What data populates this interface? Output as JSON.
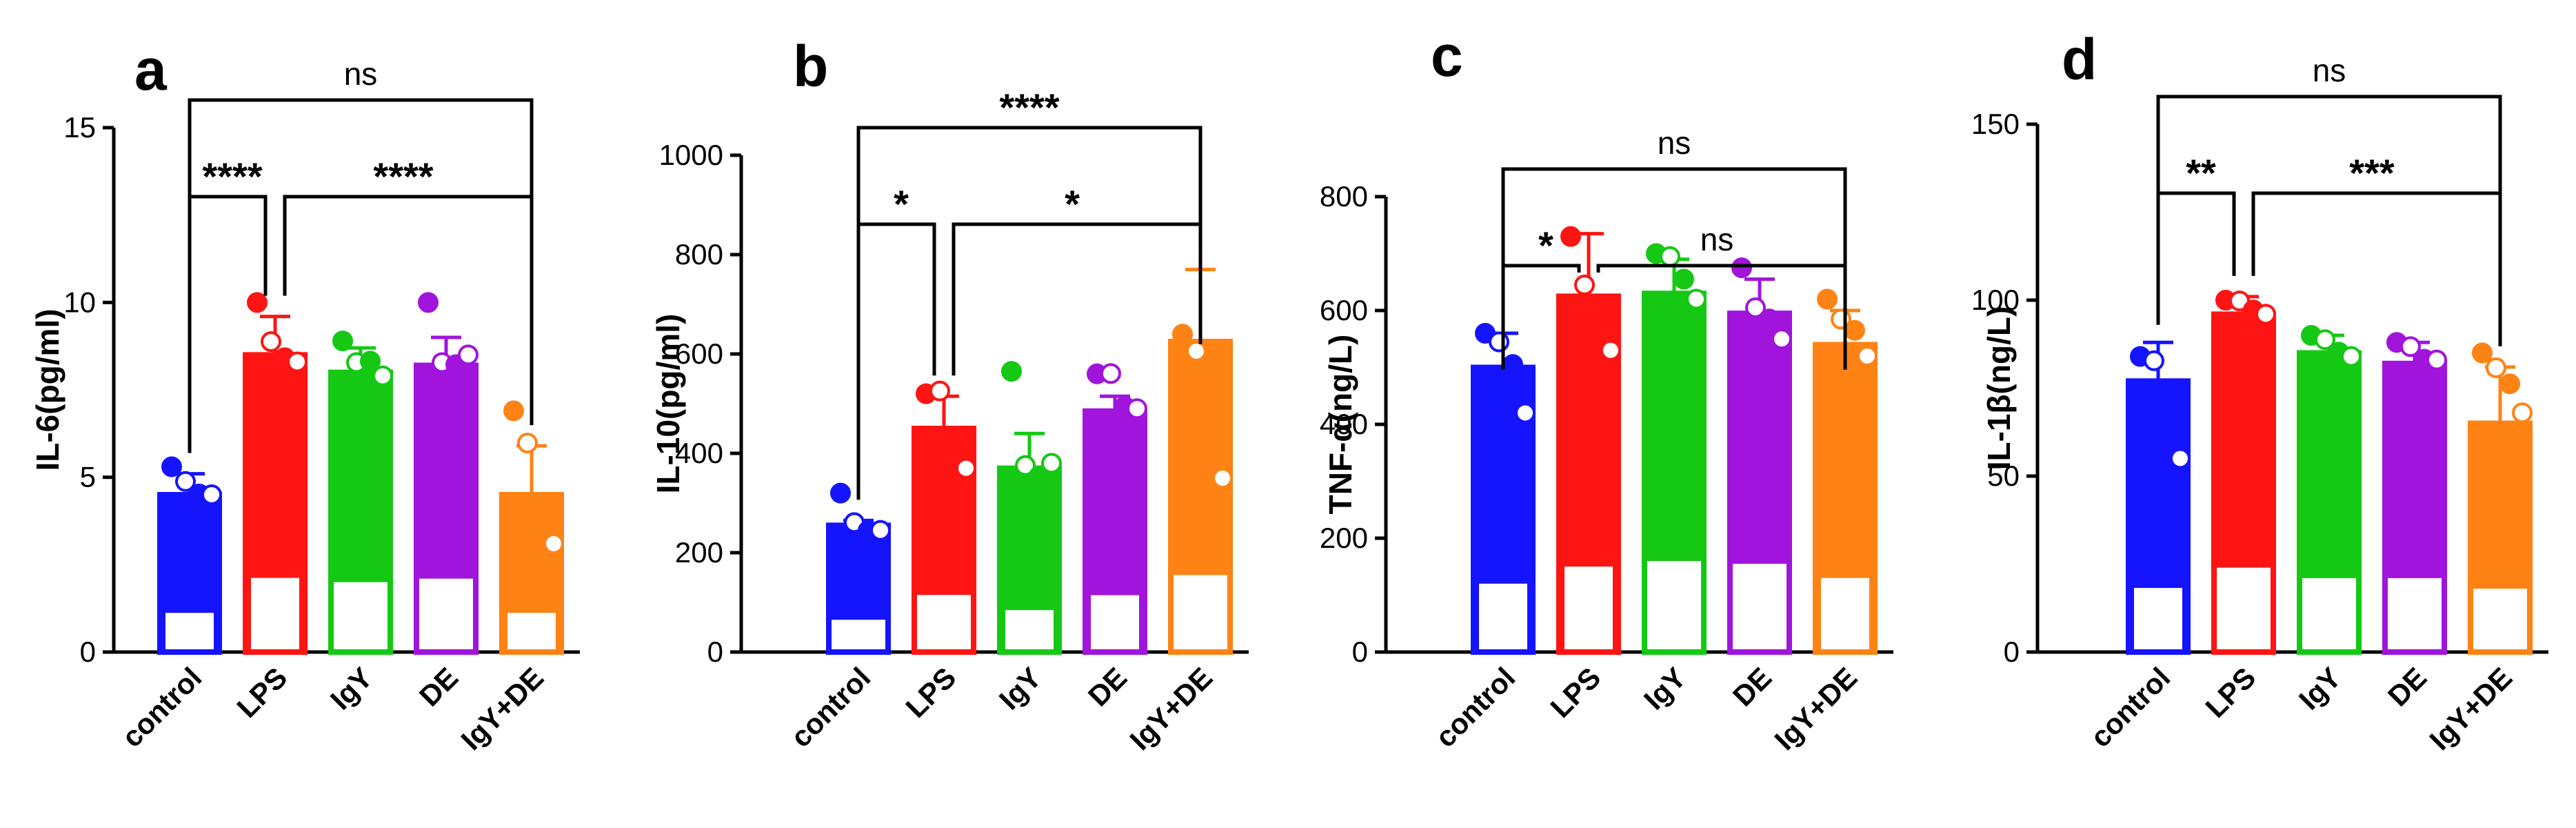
{
  "colors": {
    "control": "#1414ff",
    "LPS": "#ff1414",
    "IgY": "#14c814",
    "DE": "#a014dc",
    "IgY+DE": "#ff8214",
    "axis": "#000000"
  },
  "chart_data": [
    {
      "panel": "a",
      "type": "bar",
      "ylabel": "IL-6(pg/ml)",
      "categories": [
        "control",
        "LPS",
        "IgY",
        "DE",
        "IgY+DE"
      ],
      "values": [
        4.5,
        8.5,
        8.0,
        8.2,
        4.5
      ],
      "errors": [
        0.6,
        1.1,
        0.7,
        0.8,
        1.4
      ],
      "points": [
        [
          5.3,
          4.8,
          4.6,
          4.5
        ],
        [
          10.0,
          8.8,
          8.5,
          8.3
        ],
        [
          8.9,
          8.2,
          8.4,
          7.9
        ],
        [
          10.0,
          8.2,
          8.3,
          8.5
        ],
        [
          6.9,
          5.9,
          3.4,
          3.1
        ]
      ],
      "inner": [
        [
          1.2,
          4.5,
          true
        ],
        [
          2.2,
          8.5,
          true
        ],
        [
          2.0,
          8.0,
          false
        ],
        [
          2.1,
          8.2,
          false
        ],
        [
          1.2,
          4.5,
          true
        ]
      ],
      "ylim": [
        0,
        15
      ],
      "yticks": [
        0,
        5,
        10,
        15
      ],
      "comparisons": [
        {
          "from": 0,
          "to": 1,
          "label": "****",
          "level": 1
        },
        {
          "from": 1,
          "to": 4,
          "label": "****",
          "level": 1
        },
        {
          "from": 0,
          "to": 4,
          "label": "ns",
          "level": 2
        }
      ]
    },
    {
      "panel": "b",
      "type": "bar",
      "ylabel": "IL-10(pg/ml)",
      "categories": [
        "control",
        "LPS",
        "IgY",
        "DE",
        "IgY+DE"
      ],
      "values": [
        255,
        450,
        370,
        485,
        625
      ],
      "errors": [
        10,
        65,
        70,
        30,
        145
      ],
      "points": [
        [
          320,
          255,
          250,
          245
        ],
        [
          520,
          520,
          420,
          370
        ],
        [
          565,
          370,
          360,
          380
        ],
        [
          560,
          555,
          500,
          490
        ],
        [
          640,
          600,
          500,
          350
        ]
      ],
      "inner": [
        [
          65,
          255,
          false
        ],
        [
          115,
          450,
          false
        ],
        [
          90,
          370,
          true
        ],
        [
          120,
          485,
          true
        ],
        [
          155,
          625,
          false
        ]
      ],
      "ylim": [
        0,
        1000
      ],
      "yticks": [
        0,
        200,
        400,
        600,
        800,
        1000
      ],
      "comparisons": [
        {
          "from": 0,
          "to": 1,
          "label": "*",
          "level": 1
        },
        {
          "from": 1,
          "to": 4,
          "label": "*",
          "level": 1
        },
        {
          "from": 0,
          "to": 4,
          "label": "****",
          "level": 2
        }
      ]
    },
    {
      "panel": "c",
      "type": "bar",
      "ylabel": "TNF-α(ng/L)",
      "categories": [
        "control",
        "LPS",
        "IgY",
        "DE",
        "IgY+DE"
      ],
      "values": [
        500,
        625,
        630,
        595,
        540
      ],
      "errors": [
        60,
        110,
        60,
        60,
        60
      ],
      "points": [
        [
          560,
          540,
          510,
          420
        ],
        [
          730,
          640,
          540,
          530
        ],
        [
          700,
          690,
          660,
          620
        ],
        [
          675,
          600,
          590,
          550
        ],
        [
          620,
          580,
          570,
          520
        ]
      ],
      "inner": [
        [
          125,
          500,
          true
        ],
        [
          155,
          625,
          true
        ],
        [
          160,
          630,
          false
        ],
        [
          155,
          595,
          false
        ],
        [
          135,
          540,
          true
        ]
      ],
      "ylim": [
        0,
        800
      ],
      "yticks": [
        0,
        200,
        400,
        600,
        800
      ],
      "comparisons": [
        {
          "from": 0,
          "to": 1,
          "label": "*",
          "level": 1
        },
        {
          "from": 1,
          "to": 4,
          "label": "ns",
          "level": 1
        },
        {
          "from": 0,
          "to": 4,
          "label": "ns",
          "level": 2
        }
      ]
    },
    {
      "panel": "d",
      "type": "bar",
      "ylabel": "IL-1β(ng/L)",
      "categories": [
        "control",
        "LPS",
        "IgY",
        "DE",
        "IgY+DE"
      ],
      "values": [
        77,
        96,
        85,
        82,
        65
      ],
      "errors": [
        11,
        5,
        5,
        6,
        16
      ],
      "points": [
        [
          84,
          82,
          75,
          55
        ],
        [
          100,
          99,
          98,
          96
        ],
        [
          90,
          88,
          86,
          84
        ],
        [
          88,
          86,
          84,
          83
        ],
        [
          85,
          80,
          77,
          68
        ]
      ],
      "inner": [
        [
          19,
          77,
          true
        ],
        [
          24,
          96,
          false
        ],
        [
          21,
          85,
          false
        ],
        [
          21,
          82,
          false
        ],
        [
          18,
          65,
          false
        ]
      ],
      "ylim": [
        0,
        150
      ],
      "yticks": [
        0,
        50,
        100,
        150
      ],
      "comparisons": [
        {
          "from": 0,
          "to": 1,
          "label": "**",
          "level": 1
        },
        {
          "from": 1,
          "to": 4,
          "label": "***",
          "level": 1
        },
        {
          "from": 0,
          "to": 4,
          "label": "ns",
          "level": 2
        }
      ]
    }
  ]
}
